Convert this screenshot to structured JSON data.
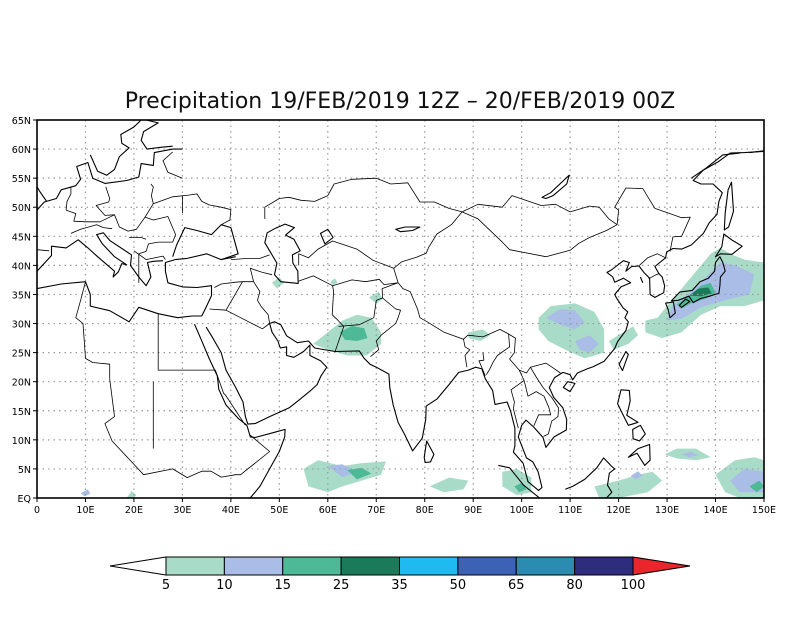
{
  "map": {
    "title": "Precipitation 19/FEB/2019 12Z – 20/FEB/2019 00Z",
    "projection": "lat-lon",
    "lon_range": [
      0,
      150
    ],
    "lat_range": [
      0,
      65
    ],
    "lat_labels": [
      "EQ",
      "5N",
      "10N",
      "15N",
      "20N",
      "25N",
      "30N",
      "35N",
      "40N",
      "45N",
      "50N",
      "55N",
      "60N",
      "65N"
    ],
    "lon_labels": [
      "0",
      "10E",
      "20E",
      "30E",
      "40E",
      "50E",
      "60E",
      "70E",
      "80E",
      "90E",
      "100E",
      "110E",
      "120E",
      "130E",
      "140E",
      "150E"
    ],
    "gridlines": "dotted",
    "coastline_color": "#000000"
  },
  "legend": {
    "position": "bottom",
    "labels": [
      "5",
      "10",
      "15",
      "25",
      "35",
      "50",
      "65",
      "80",
      "100"
    ],
    "colors": [
      "#ffffff",
      "#a8dcc9",
      "#aabde6",
      "#4eb996",
      "#1b7a5a",
      "#1fbbf0",
      "#3b62b4",
      "#2a8cb0",
      "#2d2c7d",
      "#e8262c"
    ]
  },
  "precip_areas": [
    {
      "region": "Japan",
      "level": "35"
    },
    {
      "region": "Northwest Pacific",
      "level": "15"
    },
    {
      "region": "Southern China",
      "level": "15"
    },
    {
      "region": "Pakistan",
      "level": "25"
    },
    {
      "region": "Arabian Sea",
      "level": "15"
    },
    {
      "region": "Maritime Continent",
      "level": "25"
    }
  ]
}
